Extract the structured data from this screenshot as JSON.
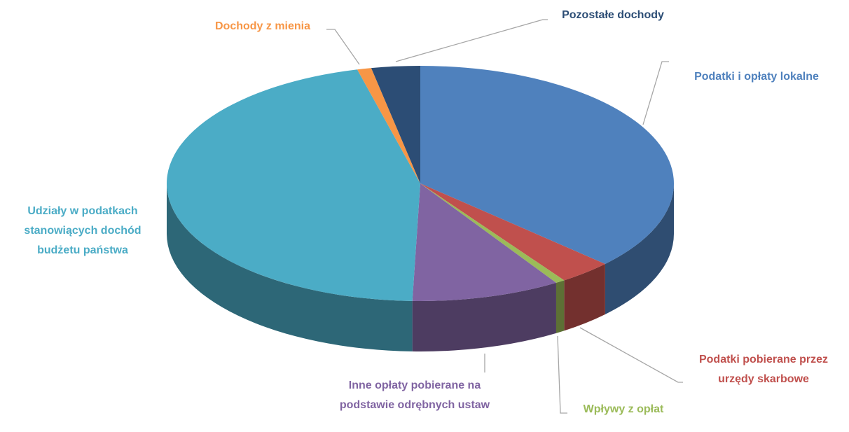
{
  "chart_data": {
    "type": "pie",
    "three_d": true,
    "categories": [
      "Podatki i opłaty lokalne",
      "Podatki pobierane przez urzędy skarbowe",
      "Wpływy z opłat",
      "Inne opłaty pobierane na podstawie odrębnych ustaw",
      "Udziały w podatkach stanowiących dochód budżetu państwa",
      "Dochody z mienia",
      "Pozostałe dochody"
    ],
    "values": [
      37,
      3.4,
      0.6,
      9.5,
      45.5,
      0.9,
      3.1
    ],
    "colors": [
      "#4f81bd",
      "#c0504d",
      "#9bbb59",
      "#8064a2",
      "#4bacc6",
      "#f79646",
      "#2c4d75"
    ]
  }
}
